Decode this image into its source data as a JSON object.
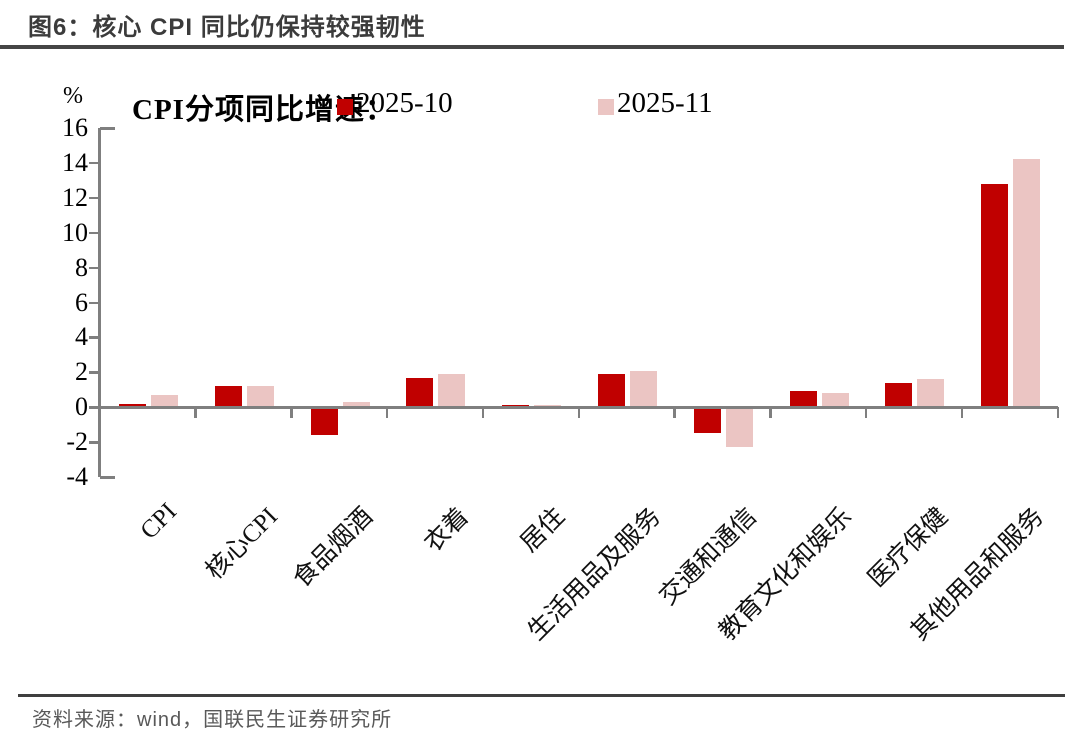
{
  "title": "图6：核心 CPI 同比仍保持较强韧性",
  "footer": {
    "source_text": "资料来源：wind，国联民生证券研究所"
  },
  "colors": {
    "series_2025_10": "#C00000",
    "series_2025_11": "#EBC5C3",
    "axis": "#7f7f7f",
    "title_text": "#3b3b3b",
    "rule": "#454545",
    "source_text": "#595959"
  },
  "chart_data": {
    "type": "bar",
    "legend_title": "CPI分项同比增速：",
    "legend_position": "top",
    "grid": false,
    "ylabel": "%",
    "ylim": [
      -4,
      16
    ],
    "yticks": [
      16,
      14,
      12,
      10,
      8,
      6,
      4,
      2,
      0,
      -2,
      -4
    ],
    "categories": [
      "CPI",
      "核心CPI",
      "食品烟酒",
      "衣着",
      "居住",
      "生活用品及服务",
      "交通和通信",
      "教育文化和娱乐",
      "医疗保健",
      "其他用品和服务"
    ],
    "series": [
      {
        "name": "2025-10",
        "color": "#C00000",
        "values": [
          0.2,
          1.2,
          -1.6,
          1.7,
          0.1,
          1.9,
          -1.5,
          0.9,
          1.4,
          12.8
        ]
      },
      {
        "name": "2025-11",
        "color": "#EBC5C3",
        "values": [
          0.7,
          1.2,
          0.3,
          1.9,
          0.1,
          2.1,
          -2.3,
          0.8,
          1.6,
          14.2
        ]
      }
    ]
  }
}
